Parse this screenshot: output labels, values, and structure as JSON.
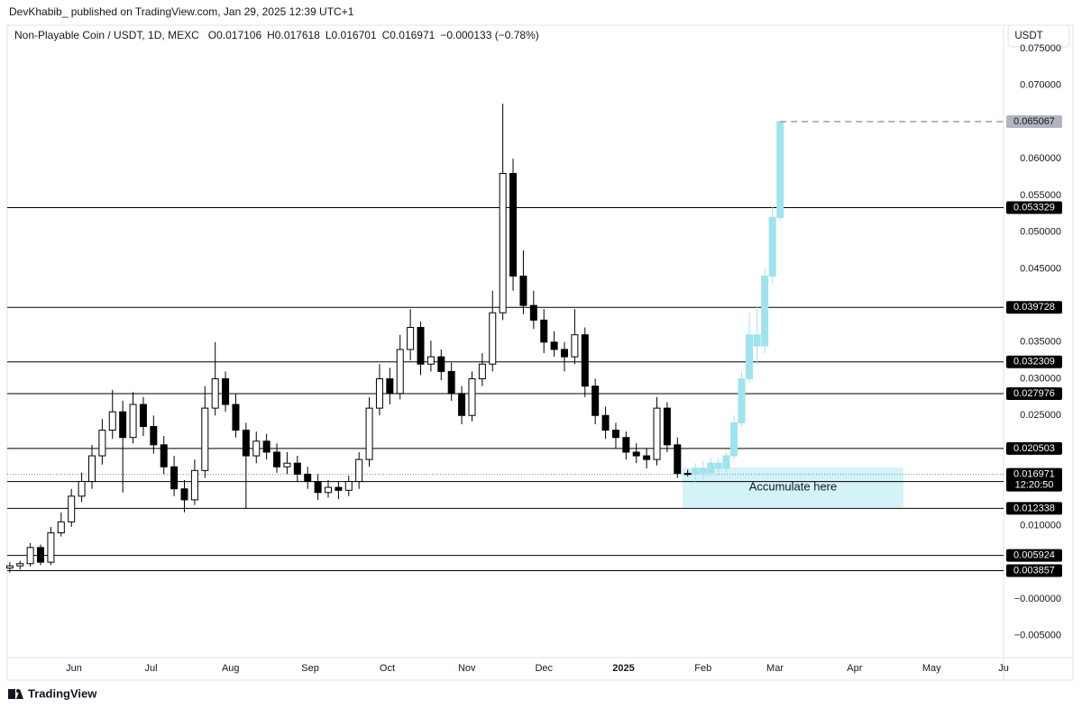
{
  "header": {
    "published": "DevKhabib_  published on TradingView.com, Jan 29, 2025 12:39 UTC+1",
    "symbol": "Non-Playable Coin / USDT, 1D, MEXC",
    "ohlc": [
      "O0.017106",
      "H0.017618",
      "L0.016701",
      "C0.016971",
      "−0.000133 (−0.78%)"
    ]
  },
  "currency_button": "USDT",
  "footer": "TradingView",
  "chart_data": {
    "type": "candlestick",
    "color_up": "#ffffff",
    "color_down": "#000000",
    "color_outline": "#000000",
    "x": [
      1,
      5,
      9,
      13,
      17,
      21,
      25,
      29,
      33,
      37,
      41,
      45,
      49,
      53,
      57,
      61,
      65,
      69,
      73,
      77,
      81,
      85,
      89,
      93,
      97,
      101,
      105,
      109,
      113,
      117,
      121,
      125,
      129,
      133,
      137,
      141,
      145,
      149,
      153,
      157,
      161,
      165,
      169,
      173,
      177,
      181,
      185,
      189,
      193,
      197,
      201,
      205,
      209,
      213,
      217,
      221,
      225,
      229,
      233,
      237,
      241,
      245,
      249,
      253,
      257,
      261,
      265
    ],
    "open": [
      0.0042,
      0.0045,
      0.0048,
      0.007,
      0.005,
      0.009,
      0.0105,
      0.014,
      0.016,
      0.0195,
      0.023,
      0.0255,
      0.022,
      0.0265,
      0.0235,
      0.021,
      0.018,
      0.015,
      0.0135,
      0.0175,
      0.026,
      0.03,
      0.0265,
      0.023,
      0.0195,
      0.0215,
      0.02,
      0.018,
      0.0185,
      0.017,
      0.016,
      0.0145,
      0.0152,
      0.0148,
      0.016,
      0.019,
      0.026,
      0.03,
      0.028,
      0.034,
      0.037,
      0.032,
      0.033,
      0.031,
      0.028,
      0.025,
      0.03,
      0.032,
      0.039,
      0.058,
      0.044,
      0.04,
      0.038,
      0.035,
      0.034,
      0.033,
      0.036,
      0.029,
      0.025,
      0.023,
      0.022,
      0.02,
      0.0195,
      0.019,
      0.026,
      0.021,
      0.017106
    ],
    "high": [
      0.005,
      0.0052,
      0.0076,
      0.0074,
      0.0098,
      0.0118,
      0.015,
      0.0172,
      0.021,
      0.0245,
      0.0285,
      0.027,
      0.0282,
      0.0275,
      0.025,
      0.0222,
      0.0195,
      0.0162,
      0.019,
      0.029,
      0.035,
      0.031,
      0.028,
      0.024,
      0.0228,
      0.0225,
      0.0212,
      0.02,
      0.0195,
      0.018,
      0.017,
      0.0162,
      0.016,
      0.0168,
      0.02,
      0.0275,
      0.032,
      0.0315,
      0.036,
      0.0395,
      0.0378,
      0.0352,
      0.034,
      0.0322,
      0.029,
      0.031,
      0.0335,
      0.042,
      0.0675,
      0.06,
      0.0475,
      0.042,
      0.0395,
      0.0365,
      0.035,
      0.0395,
      0.037,
      0.03,
      0.0262,
      0.024,
      0.0228,
      0.0212,
      0.0205,
      0.0275,
      0.0268,
      0.022,
      0.017618
    ],
    "low": [
      0.0036,
      0.004,
      0.0044,
      0.0046,
      0.0046,
      0.0085,
      0.0098,
      0.0132,
      0.015,
      0.0183,
      0.0218,
      0.0145,
      0.0212,
      0.0222,
      0.0198,
      0.017,
      0.014,
      0.0118,
      0.0128,
      0.0165,
      0.025,
      0.0255,
      0.022,
      0.0123,
      0.0185,
      0.019,
      0.0172,
      0.017,
      0.016,
      0.015,
      0.0135,
      0.0138,
      0.0136,
      0.014,
      0.015,
      0.018,
      0.025,
      0.0265,
      0.0272,
      0.0325,
      0.0305,
      0.031,
      0.0298,
      0.027,
      0.0238,
      0.0242,
      0.029,
      0.031,
      0.038,
      0.042,
      0.0388,
      0.0368,
      0.0335,
      0.033,
      0.031,
      0.032,
      0.0275,
      0.0238,
      0.0218,
      0.0205,
      0.019,
      0.0185,
      0.0178,
      0.0182,
      0.02,
      0.0165,
      0.016701
    ],
    "close": [
      0.0045,
      0.0048,
      0.007,
      0.005,
      0.009,
      0.0105,
      0.014,
      0.016,
      0.0195,
      0.023,
      0.0255,
      0.022,
      0.0265,
      0.0235,
      0.021,
      0.018,
      0.015,
      0.0135,
      0.0175,
      0.026,
      0.03,
      0.0265,
      0.023,
      0.0195,
      0.0215,
      0.02,
      0.018,
      0.0185,
      0.017,
      0.016,
      0.0145,
      0.0152,
      0.0148,
      0.016,
      0.019,
      0.026,
      0.03,
      0.028,
      0.034,
      0.037,
      0.032,
      0.033,
      0.031,
      0.028,
      0.025,
      0.03,
      0.032,
      0.039,
      0.058,
      0.044,
      0.04,
      0.038,
      0.035,
      0.034,
      0.033,
      0.036,
      0.029,
      0.025,
      0.023,
      0.022,
      0.02,
      0.0195,
      0.019,
      0.026,
      0.021,
      0.0171,
      0.016971
    ],
    "projection": {
      "color": "#9fe3ee",
      "x": [
        268,
        271,
        274,
        277,
        280,
        283,
        286,
        289,
        292,
        295,
        298,
        301
      ],
      "open": [
        0.017,
        0.0178,
        0.0172,
        0.0185,
        0.0178,
        0.0195,
        0.024,
        0.03,
        0.036,
        0.0345,
        0.044,
        0.052
      ],
      "high": [
        0.0185,
        0.0188,
        0.0192,
        0.0192,
        0.02,
        0.025,
        0.031,
        0.039,
        0.04,
        0.045,
        0.0535,
        0.065067
      ],
      "low": [
        0.016,
        0.0162,
        0.0168,
        0.017,
        0.0172,
        0.019,
        0.0235,
        0.0295,
        0.032,
        0.0335,
        0.043,
        0.0515
      ],
      "close": [
        0.0178,
        0.0172,
        0.0185,
        0.0178,
        0.0195,
        0.024,
        0.03,
        0.036,
        0.0345,
        0.044,
        0.052,
        0.065067
      ]
    },
    "xlim": [
      0,
      388
    ],
    "xticks": [
      {
        "value": 26,
        "label": "Jun"
      },
      {
        "value": 56,
        "label": "Jul"
      },
      {
        "value": 87,
        "label": "Aug"
      },
      {
        "value": 118,
        "label": "Sep"
      },
      {
        "value": 148,
        "label": "Oct"
      },
      {
        "value": 179,
        "label": "Nov"
      },
      {
        "value": 209,
        "label": "Dec"
      },
      {
        "value": 240,
        "label": "2025"
      },
      {
        "value": 271,
        "label": "Feb"
      },
      {
        "value": 299,
        "label": "Mar"
      },
      {
        "value": 330,
        "label": "Apr"
      },
      {
        "value": 360,
        "label": "May"
      },
      {
        "value": 388,
        "label": "Ju"
      }
    ],
    "ylim": [
      -0.008,
      0.0782
    ],
    "yticks": [
      {
        "value": 0.075,
        "label": "0.075000"
      },
      {
        "value": 0.07,
        "label": "0.070000"
      },
      {
        "value": 0.06,
        "label": "0.060000"
      },
      {
        "value": 0.055,
        "label": "0.055000"
      },
      {
        "value": 0.05,
        "label": "0.050000"
      },
      {
        "value": 0.045,
        "label": "0.045000"
      },
      {
        "value": 0.035,
        "label": "0.035000"
      },
      {
        "value": 0.03,
        "label": "0.030000"
      },
      {
        "value": 0.025,
        "label": "0.025000"
      },
      {
        "value": 0.01,
        "label": "0.010000"
      },
      {
        "value": 0,
        "label": "−0.000000"
      },
      {
        "value": -0.005,
        "label": "−0.005000"
      }
    ],
    "grid": false,
    "levels": [
      0.053329,
      0.039728,
      0.032309,
      0.027976,
      0.020503,
      0.015986,
      0.012338,
      0.005924,
      0.003857
    ],
    "target": 0.065067,
    "current_price": 0.016971,
    "countdown": "12:20:50",
    "zone": {
      "x": [
        263,
        349
      ],
      "y": [
        0.0125,
        0.0179
      ],
      "label": "Accumulate here",
      "color": "#d3f3f8"
    }
  }
}
